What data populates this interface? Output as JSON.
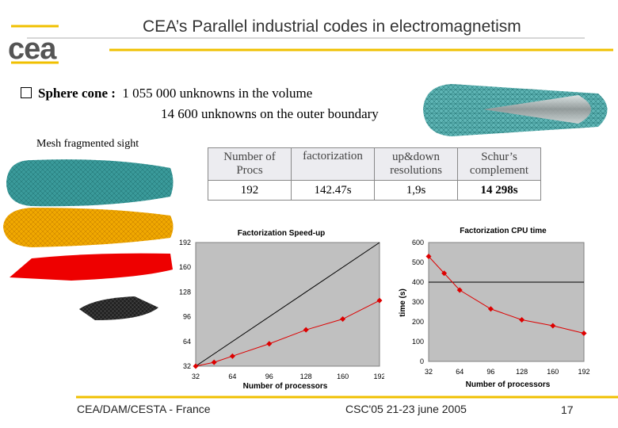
{
  "slide": {
    "title": "CEA’s Parallel industrial codes in electromagnetism",
    "logo_text": "cea",
    "bullet_label": "Sphere cone :",
    "bullet_line1": "1 055 000 unknowns in the volume",
    "bullet_line2": "14 600 unknowns on the outer boundary",
    "mesh_label": "Mesh fragmented sight",
    "footer_left": "CEA/DAM/CESTA - France",
    "footer_center": "CSC'05 21-23 june 2005",
    "page_number": "17"
  },
  "table": {
    "headers": [
      [
        "Number of",
        "Procs"
      ],
      [
        "factorization",
        ""
      ],
      [
        "up&down",
        "resolutions"
      ],
      [
        "Schur’s",
        "complement"
      ]
    ],
    "values": [
      "192",
      "142.47s",
      "1,9s",
      "14 298s"
    ]
  },
  "colors": {
    "accent_yellow": "#f0c000",
    "mesh_teal": "#3a9a9a",
    "mesh_orange": "#f0a800",
    "mesh_red": "#ee0000",
    "mesh_black": "#222222",
    "plot_bg": "#c0c0c0",
    "series_red": "#dd0000"
  },
  "chart_data": [
    {
      "type": "line",
      "title": "Factorization Speed-up",
      "xlabel": "Number of processors",
      "ylabel": "",
      "x_ticks": [
        32,
        64,
        96,
        128,
        160,
        192
      ],
      "y_ticks": [
        32,
        64,
        96,
        128,
        160,
        192
      ],
      "xlim": [
        32,
        192
      ],
      "ylim": [
        32,
        192
      ],
      "series": [
        {
          "name": "",
          "role": "ideal",
          "x": [
            32,
            192
          ],
          "y": [
            32,
            192
          ]
        },
        {
          "name": "",
          "role": "measured",
          "x": [
            32,
            48,
            64,
            96,
            128,
            160,
            192
          ],
          "y": [
            32,
            37,
            45,
            61,
            79,
            93,
            117
          ]
        }
      ]
    },
    {
      "type": "line",
      "title": "Factorization CPU time",
      "xlabel": "Number of processors",
      "ylabel": "time (s)",
      "x_ticks": [
        32,
        64,
        96,
        128,
        160,
        192
      ],
      "y_ticks": [
        0,
        100,
        200,
        300,
        400,
        500,
        600
      ],
      "xlim": [
        32,
        192
      ],
      "ylim": [
        0,
        600
      ],
      "reference_line": 400,
      "series": [
        {
          "name": "",
          "x": [
            32,
            48,
            64,
            96,
            128,
            160,
            192
          ],
          "y": [
            530,
            445,
            360,
            265,
            210,
            180,
            142
          ]
        }
      ]
    }
  ]
}
